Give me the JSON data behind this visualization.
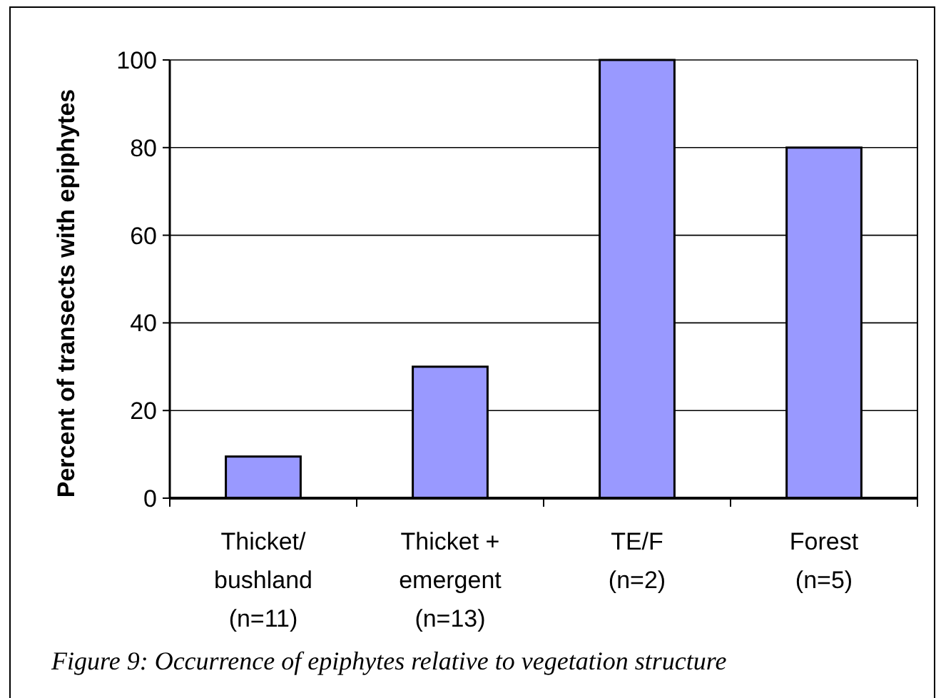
{
  "chart_data": {
    "type": "bar",
    "ylabel": "Percent of transects with epiphytes",
    "categories": [
      "Thicket/\nbushland\n\n(n=11)",
      "Thicket +\nemergent\n\n(n=13)",
      "TE/F\n\n\n(n=2)",
      "Forest\n\n\n(n=5)"
    ],
    "values": [
      9.5,
      30,
      100,
      80
    ],
    "color": "#9999ff",
    "ylim": [
      0,
      100
    ],
    "yticks": [
      0,
      20,
      40,
      60,
      80,
      100
    ],
    "grid": "y",
    "annotations": [
      "Figure 9: Occurrence of epiphytes relative to vegetation structure"
    ]
  }
}
